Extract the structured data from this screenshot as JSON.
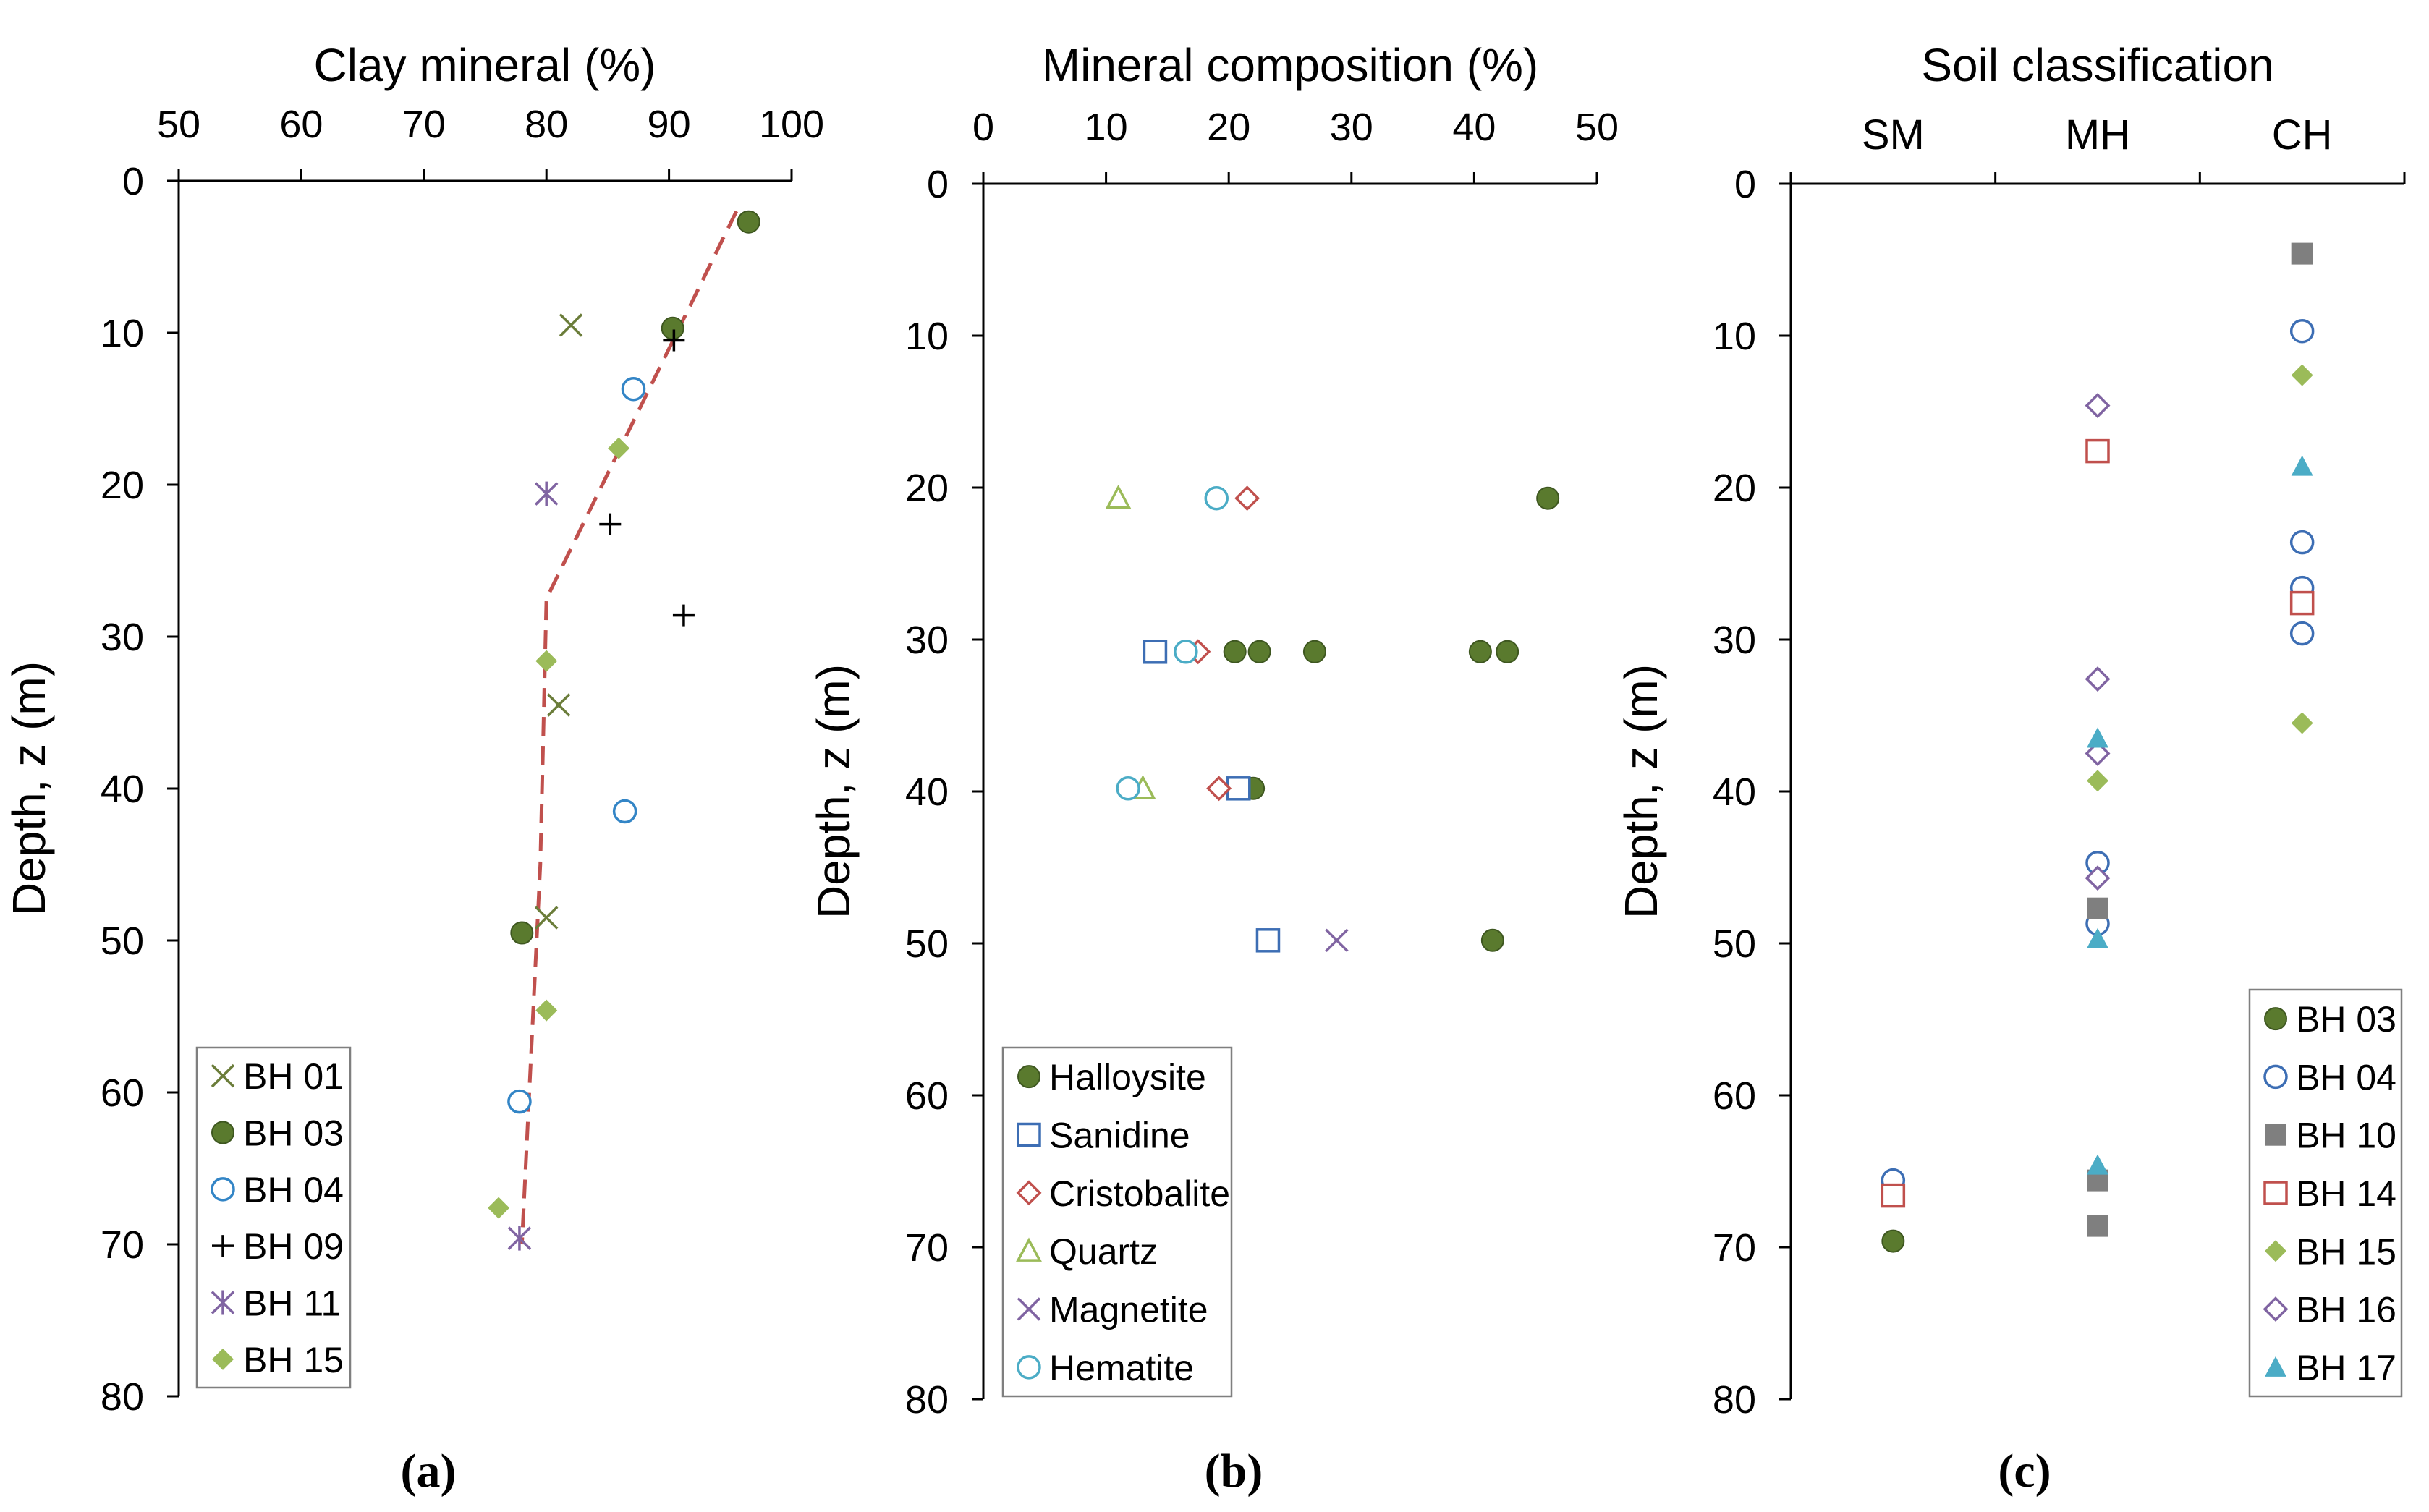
{
  "chart_data": [
    {
      "id": "a",
      "type": "scatter",
      "title": "Clay mineral (%)",
      "xlabel": "Clay mineral (%)",
      "ylabel": "Depth, z (m)",
      "xlim": [
        50,
        100
      ],
      "ylim": [
        0,
        80
      ],
      "xticks": [
        "50",
        "60",
        "70",
        "80",
        "90",
        "100"
      ],
      "yticks": [
        "0",
        "10",
        "20",
        "30",
        "40",
        "50",
        "60",
        "70",
        "80"
      ],
      "caption": "(a)",
      "legend_position": "bottom-left",
      "series": [
        {
          "name": "BH 01",
          "marker": "x",
          "color": "#6b7d3a",
          "points": [
            [
              82,
              9.5
            ],
            [
              81,
              34.5
            ],
            [
              80,
              48.5
            ]
          ]
        },
        {
          "name": "BH 03",
          "marker": "circle-filled",
          "color": "#5a7a2e",
          "points": [
            [
              96.5,
              2.7
            ],
            [
              90.3,
              9.7
            ],
            [
              78,
              49.5
            ]
          ]
        },
        {
          "name": "BH 04",
          "marker": "circle-open",
          "color": "#3385c6",
          "points": [
            [
              87.1,
              13.7
            ],
            [
              86.4,
              41.5
            ],
            [
              77.8,
              60.6
            ]
          ]
        },
        {
          "name": "BH 09",
          "marker": "plus",
          "color": "#000000",
          "points": [
            [
              90.4,
              10.5
            ],
            [
              85.2,
              22.6
            ],
            [
              91.2,
              28.6
            ]
          ]
        },
        {
          "name": "BH 11",
          "marker": "asterisk",
          "color": "#8064a2",
          "points": [
            [
              80,
              20.6
            ],
            [
              77.8,
              69.6
            ]
          ]
        },
        {
          "name": "BH 15",
          "marker": "diamond-filled",
          "color": "#9bbb59",
          "points": [
            [
              85.9,
              17.6
            ],
            [
              80,
              31.6
            ],
            [
              80,
              54.6
            ],
            [
              76.1,
              67.6
            ]
          ]
        }
      ],
      "trend_line": {
        "style": "dashed",
        "color": "#c0504d",
        "points": [
          [
            95.5,
            2
          ],
          [
            80,
            27.5
          ],
          [
            79.5,
            45
          ],
          [
            78,
            70
          ]
        ]
      }
    },
    {
      "id": "b",
      "type": "scatter",
      "title": "Mineral composition (%)",
      "xlabel": "Mineral composition (%)",
      "ylabel": "Depth, z (m)",
      "xlim": [
        0,
        50
      ],
      "ylim": [
        0,
        80
      ],
      "xticks": [
        "0",
        "10",
        "20",
        "30",
        "40",
        "50"
      ],
      "yticks": [
        "0",
        "10",
        "20",
        "30",
        "40",
        "50",
        "60",
        "70",
        "80"
      ],
      "caption": "(b)",
      "legend_position": "bottom-left",
      "series": [
        {
          "name": "Halloysite",
          "marker": "circle-filled",
          "color": "#5a7a2e",
          "points": [
            [
              46,
              20.7
            ],
            [
              20.5,
              30.8
            ],
            [
              22.5,
              30.8
            ],
            [
              27,
              30.8
            ],
            [
              40.5,
              30.8
            ],
            [
              42.7,
              30.8
            ],
            [
              22,
              39.8
            ],
            [
              41.5,
              49.8
            ]
          ]
        },
        {
          "name": "Sanidine",
          "marker": "square-open",
          "color": "#3d6eb4",
          "points": [
            [
              14,
              30.8
            ],
            [
              20.8,
              39.8
            ],
            [
              23.2,
              49.8
            ]
          ]
        },
        {
          "name": "Cristobalite",
          "marker": "diamond-open",
          "color": "#c0504d",
          "points": [
            [
              21.5,
              20.7
            ],
            [
              17.5,
              30.8
            ],
            [
              19.2,
              39.8
            ]
          ]
        },
        {
          "name": "Quartz",
          "marker": "triangle-open",
          "color": "#9bbb59",
          "points": [
            [
              11,
              20.7
            ],
            [
              13,
              39.8
            ]
          ]
        },
        {
          "name": "Magnetite",
          "marker": "x",
          "color": "#8064a2",
          "points": [
            [
              28.8,
              49.8
            ]
          ]
        },
        {
          "name": "Hematite",
          "marker": "circle-open",
          "color": "#4bacc6",
          "points": [
            [
              19,
              20.7
            ],
            [
              16.5,
              30.8
            ],
            [
              11.8,
              39.8
            ]
          ]
        }
      ]
    },
    {
      "id": "c",
      "type": "scatter",
      "title": "Soil classification",
      "xlabel": "Soil classification",
      "ylabel": "Depth, z (m)",
      "categories": [
        "SM",
        "MH",
        "CH"
      ],
      "ylim": [
        0,
        80
      ],
      "yticks": [
        "0",
        "10",
        "20",
        "30",
        "40",
        "50",
        "60",
        "70",
        "80"
      ],
      "caption": "(c)",
      "legend_position": "bottom-right",
      "series": [
        {
          "name": "BH 03",
          "marker": "circle-filled",
          "color": "#5a7a2e",
          "points": [
            [
              "SM",
              69.6
            ]
          ]
        },
        {
          "name": "BH 04",
          "marker": "circle-open",
          "color": "#3d6eb4",
          "points": [
            [
              "SM",
              65.6
            ],
            [
              "MH",
              44.7
            ],
            [
              "MH",
              48.7
            ],
            [
              "CH",
              9.7
            ],
            [
              "CH",
              23.6
            ],
            [
              "CH",
              26.6
            ],
            [
              "CH",
              29.6
            ]
          ]
        },
        {
          "name": "BH 10",
          "marker": "square-filled",
          "color": "#7f7f7f",
          "points": [
            [
              "MH",
              47.7
            ],
            [
              "MH",
              65.6
            ],
            [
              "MH",
              68.6
            ],
            [
              "CH",
              4.6
            ]
          ]
        },
        {
          "name": "BH 14",
          "marker": "square-open",
          "color": "#c0504d",
          "points": [
            [
              "SM",
              66.6
            ],
            [
              "MH",
              17.6
            ],
            [
              "CH",
              27.6
            ]
          ]
        },
        {
          "name": "BH 15",
          "marker": "diamond-filled",
          "color": "#9bbb59",
          "points": [
            [
              "MH",
              39.3
            ],
            [
              "CH",
              12.6
            ],
            [
              "CH",
              35.5
            ]
          ]
        },
        {
          "name": "BH 16",
          "marker": "diamond-open",
          "color": "#8064a2",
          "points": [
            [
              "MH",
              14.6
            ],
            [
              "MH",
              32.6
            ],
            [
              "MH",
              37.5
            ],
            [
              "MH",
              45.7
            ]
          ]
        },
        {
          "name": "BH 17",
          "marker": "triangle-filled",
          "color": "#4bacc6",
          "points": [
            [
              "MH",
              36.5
            ],
            [
              "MH",
              49.7
            ],
            [
              "MH",
              64.6
            ],
            [
              "CH",
              18.6
            ]
          ]
        }
      ]
    }
  ]
}
